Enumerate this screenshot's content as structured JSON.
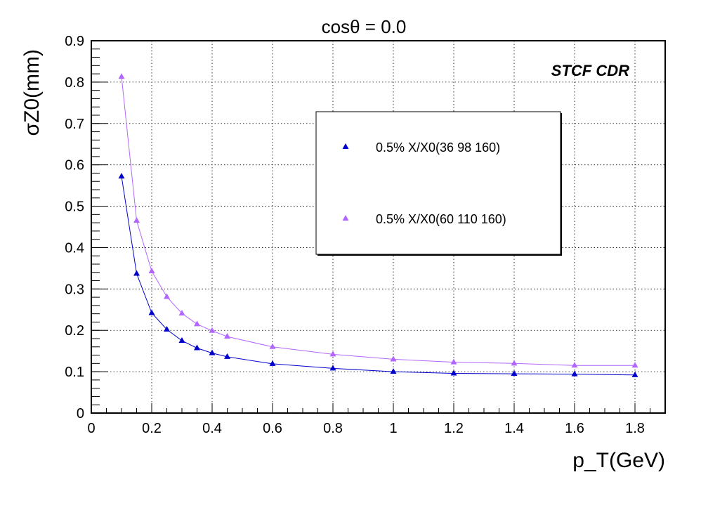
{
  "chart_data": {
    "type": "line",
    "title": "cosθ = 0.0",
    "xlabel": "p_T(GeV)",
    "ylabel": "σZ0(mm)",
    "xlim": [
      0,
      1.9
    ],
    "ylim": [
      0,
      0.9
    ],
    "xticks": [
      "0",
      "0.2",
      "0.4",
      "0.6",
      "0.8",
      "1",
      "1.2",
      "1.4",
      "1.6",
      "1.8"
    ],
    "xtick_values": [
      0,
      0.2,
      0.4,
      0.6,
      0.8,
      1.0,
      1.2,
      1.4,
      1.6,
      1.8
    ],
    "yticks": [
      "0",
      "0.1",
      "0.2",
      "0.3",
      "0.4",
      "0.5",
      "0.6",
      "0.7",
      "0.8",
      "0.9"
    ],
    "ytick_values": [
      0,
      0.1,
      0.2,
      0.3,
      0.4,
      0.5,
      0.6,
      0.7,
      0.8,
      0.9
    ],
    "grid": true,
    "legend_position": "top-right",
    "annotation": "STCF CDR",
    "x": [
      0.1,
      0.15,
      0.2,
      0.25,
      0.3,
      0.35,
      0.4,
      0.45,
      0.6,
      0.8,
      1.0,
      1.2,
      1.4,
      1.6,
      1.8
    ],
    "series": [
      {
        "name": "0.5% X/X0(36 98 160)",
        "color": "#0000cc",
        "marker": "triangle",
        "values": [
          0.572,
          0.337,
          0.242,
          0.202,
          0.175,
          0.157,
          0.145,
          0.136,
          0.119,
          0.108,
          0.1,
          0.096,
          0.095,
          0.094,
          0.092
        ]
      },
      {
        "name": "0.5% X/X0(60 110 160)",
        "color": "#b366ff",
        "marker": "triangle",
        "values": [
          0.813,
          0.465,
          0.343,
          0.281,
          0.241,
          0.215,
          0.199,
          0.185,
          0.16,
          0.142,
          0.13,
          0.123,
          0.12,
          0.115,
          0.115
        ]
      }
    ]
  }
}
